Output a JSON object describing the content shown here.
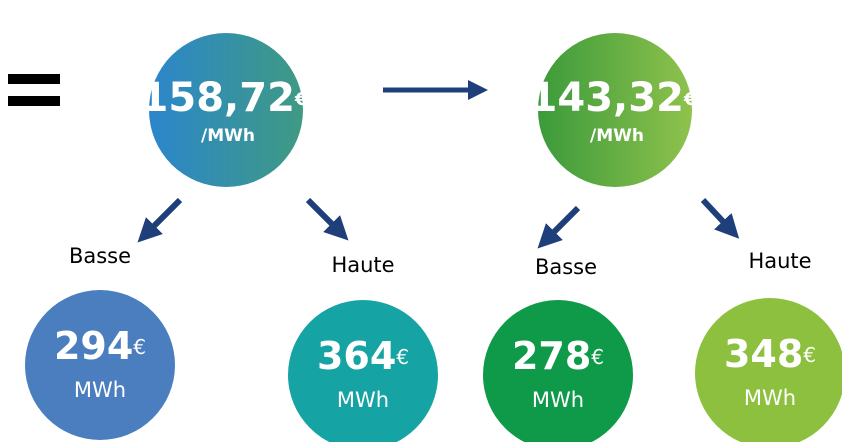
{
  "main": [
    {
      "price": "158,72",
      "currency": "€",
      "unit": "/MWh"
    },
    {
      "price": "143,32",
      "currency": "€",
      "unit": "/MWh"
    }
  ],
  "tiers": [
    {
      "label": "Basse",
      "price": "294",
      "currency": "€",
      "unit": "MWh"
    },
    {
      "label": "Haute",
      "price": "364",
      "currency": "€",
      "unit": "MWh"
    },
    {
      "label": "Basse",
      "price": "278",
      "currency": "€",
      "unit": "MWh"
    },
    {
      "label": "Haute",
      "price": "348",
      "currency": "€",
      "unit": "MWh"
    }
  ]
}
